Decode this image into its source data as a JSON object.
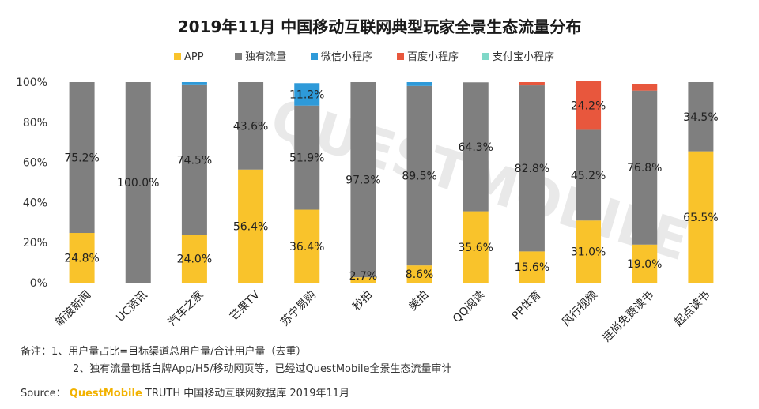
{
  "chart_data": {
    "type": "bar",
    "stacked": true,
    "title": "2019年11月 中国移动互联网典型玩家全景生态流量分布",
    "xlabel": "",
    "ylabel": "",
    "ylim": [
      0,
      100
    ],
    "yticks": [
      "0%",
      "20%",
      "40%",
      "60%",
      "80%",
      "100%"
    ],
    "legend_position": "top",
    "categories": [
      "新浪新闻",
      "UC资讯",
      "汽车之家",
      "芒果TV",
      "苏宁易购",
      "秒拍",
      "美拍",
      "QQ阅读",
      "PP体育",
      "风行视频",
      "连尚免费读书",
      "起点读书"
    ],
    "series": [
      {
        "name": "APP",
        "color": "#f9c32b",
        "values": [
          24.8,
          0,
          24.0,
          56.4,
          36.4,
          2.7,
          8.6,
          35.6,
          15.6,
          31.0,
          19.0,
          65.5
        ],
        "labels": [
          "24.8%",
          "",
          "24.0%",
          "56.4%",
          "36.4%",
          "2.7%",
          "8.6%",
          "35.6%",
          "15.6%",
          "31.0%",
          "19.0%",
          "65.5%"
        ]
      },
      {
        "name": "独有流量",
        "color": "#7f7f7f",
        "values": [
          75.2,
          100.0,
          74.5,
          43.6,
          51.9,
          97.3,
          89.5,
          64.3,
          82.8,
          45.2,
          76.8,
          34.5
        ],
        "labels": [
          "75.2%",
          "100.0%",
          "74.5%",
          "43.6%",
          "51.9%",
          "97.3%",
          "89.5%",
          "64.3%",
          "82.8%",
          "45.2%",
          "76.8%",
          "34.5%"
        ]
      },
      {
        "name": "微信小程序",
        "color": "#2e9ad9",
        "values": [
          0,
          0,
          1.5,
          0,
          11.2,
          0,
          1.9,
          0,
          0,
          0,
          0,
          0
        ],
        "labels": [
          "",
          "",
          "",
          "",
          "11.2%",
          "",
          "",
          "",
          "",
          "",
          "",
          ""
        ]
      },
      {
        "name": "百度小程序",
        "color": "#e8573d",
        "values": [
          0,
          0,
          0,
          0,
          0,
          0,
          0,
          0,
          1.6,
          24.2,
          3.2,
          0
        ],
        "labels": [
          "",
          "",
          "",
          "",
          "",
          "",
          "",
          "",
          "",
          "24.2%",
          "",
          ""
        ]
      },
      {
        "name": "支付宝小程序",
        "color": "#7fd8c8",
        "values": [
          0,
          0,
          0,
          0,
          0,
          0,
          0,
          0,
          0,
          0,
          0,
          0
        ],
        "labels": [
          "",
          "",
          "",
          "",
          "",
          "",
          "",
          "",
          "",
          "",
          "",
          ""
        ]
      }
    ],
    "notes": [
      "备注：1、用户量占比=目标渠道总用户量/合计用户量（去重）",
      "2、独有流量包括白牌App/H5/移动网页等，已经过QuestMobile全景生态流量审计"
    ],
    "source_prefix": "Source：",
    "source_brand": "QuestMobile",
    "source_text": " TRUTH 中国移动互联网数据库 2019年11月",
    "watermark": "QUESTMOBILE"
  }
}
